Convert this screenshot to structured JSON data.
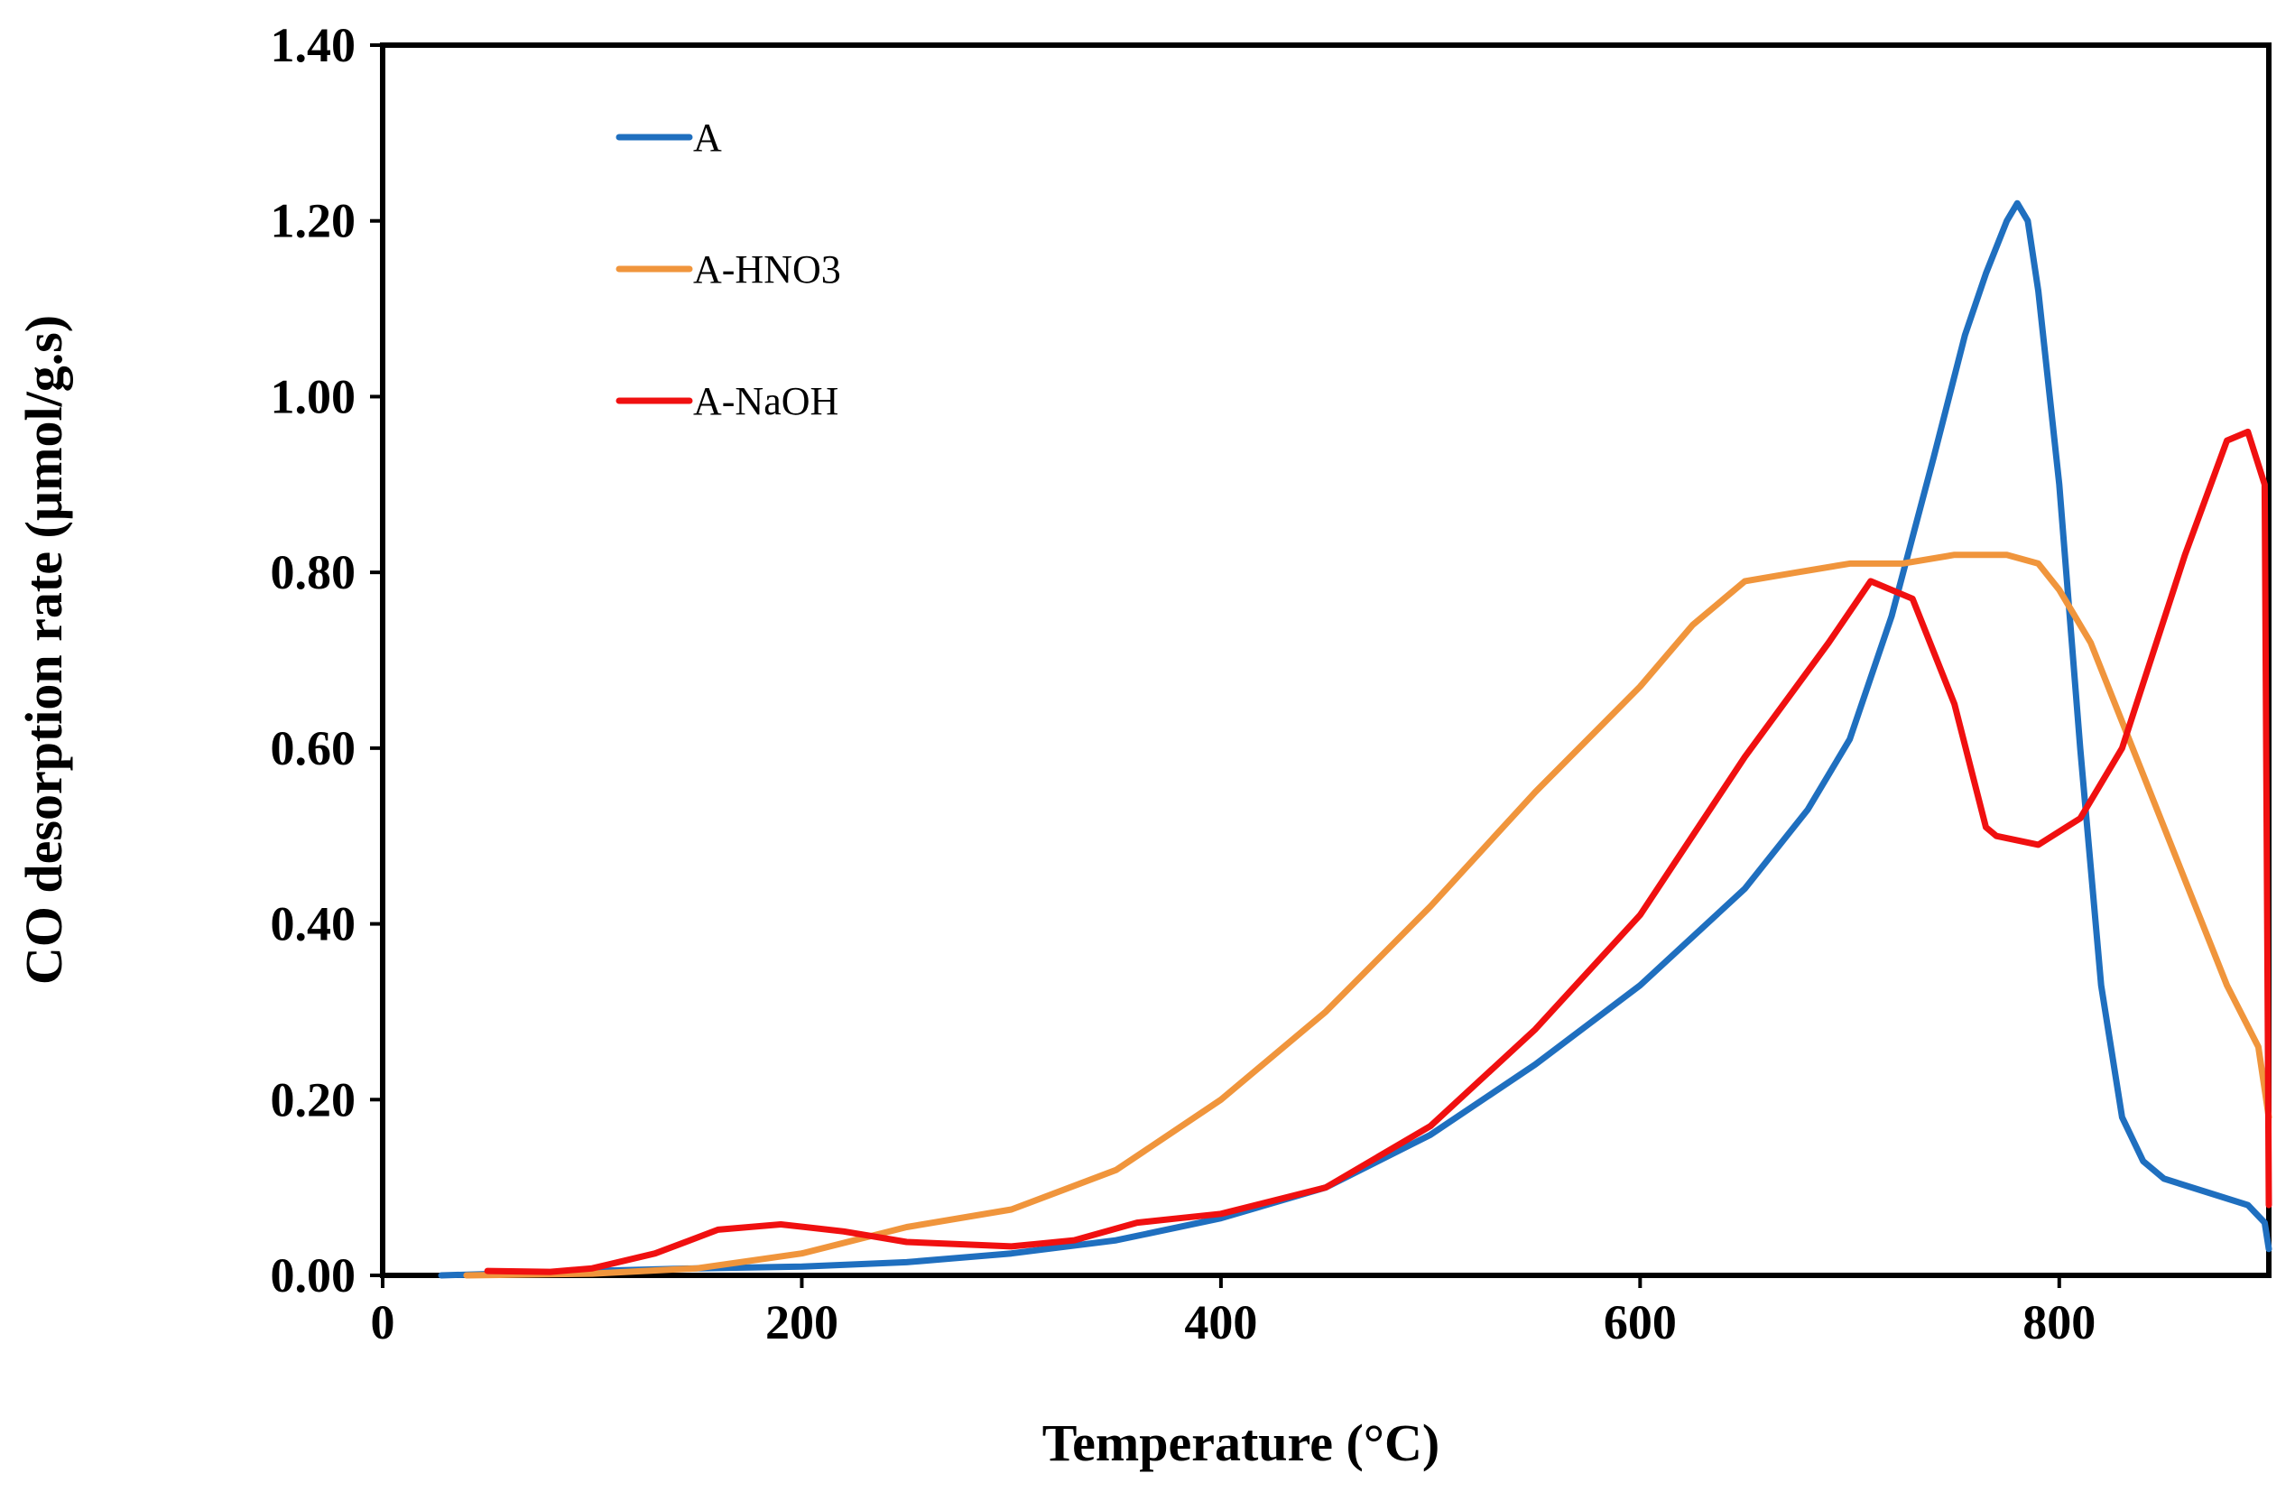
{
  "chart_data": {
    "type": "line",
    "title": "",
    "xlabel": "Temperature (°C)",
    "ylabel": "CO desorption rate (µmol/g.s)",
    "xlim": [
      0,
      900
    ],
    "ylim": [
      0,
      1.4
    ],
    "xticks": [
      0,
      200,
      400,
      600,
      800
    ],
    "xtick_labels": [
      "0",
      "200",
      "400",
      "600",
      "800"
    ],
    "yticks": [
      0,
      0.2,
      0.4,
      0.6,
      0.8,
      1.0,
      1.2,
      1.4
    ],
    "ytick_labels": [
      "0.00",
      "0.20",
      "0.40",
      "0.60",
      "0.80",
      "1.00",
      "1.20",
      "1.40"
    ],
    "grid": false,
    "legend_position": "top-left",
    "series": [
      {
        "name": "A",
        "color": "#1f6fbf",
        "x": [
          28,
          100,
          150,
          200,
          250,
          300,
          350,
          400,
          450,
          500,
          550,
          600,
          650,
          680,
          700,
          720,
          740,
          755,
          765,
          775,
          780,
          785,
          790,
          800,
          810,
          820,
          830,
          840,
          850,
          870,
          890,
          898,
          900
        ],
        "y": [
          0.0,
          0.005,
          0.008,
          0.01,
          0.015,
          0.025,
          0.04,
          0.065,
          0.1,
          0.16,
          0.24,
          0.33,
          0.44,
          0.53,
          0.61,
          0.75,
          0.93,
          1.07,
          1.14,
          1.2,
          1.22,
          1.2,
          1.12,
          0.9,
          0.6,
          0.33,
          0.18,
          0.13,
          0.11,
          0.095,
          0.08,
          0.06,
          0.03
        ]
      },
      {
        "name": "A-HNO3",
        "color": "#f0953c",
        "x": [
          40,
          100,
          150,
          200,
          250,
          300,
          350,
          400,
          450,
          500,
          550,
          600,
          625,
          650,
          675,
          700,
          725,
          750,
          775,
          790,
          800,
          815,
          825,
          840,
          860,
          880,
          895,
          900
        ],
        "y": [
          0.0,
          0.002,
          0.008,
          0.025,
          0.055,
          0.075,
          0.12,
          0.2,
          0.3,
          0.42,
          0.55,
          0.67,
          0.74,
          0.79,
          0.8,
          0.81,
          0.81,
          0.82,
          0.82,
          0.81,
          0.78,
          0.72,
          0.66,
          0.57,
          0.45,
          0.33,
          0.26,
          0.18
        ]
      },
      {
        "name": "A-NaOH",
        "color": "#f01010",
        "x": [
          50,
          80,
          100,
          130,
          160,
          190,
          220,
          250,
          300,
          330,
          360,
          380,
          400,
          450,
          500,
          550,
          600,
          650,
          690,
          710,
          730,
          750,
          765,
          770,
          790,
          810,
          830,
          860,
          880,
          890,
          898,
          900
        ],
        "y": [
          0.005,
          0.004,
          0.008,
          0.025,
          0.052,
          0.058,
          0.05,
          0.038,
          0.033,
          0.04,
          0.06,
          0.065,
          0.07,
          0.1,
          0.17,
          0.28,
          0.41,
          0.59,
          0.72,
          0.79,
          0.77,
          0.65,
          0.51,
          0.5,
          0.49,
          0.52,
          0.6,
          0.82,
          0.95,
          0.96,
          0.9,
          0.08
        ]
      }
    ]
  }
}
